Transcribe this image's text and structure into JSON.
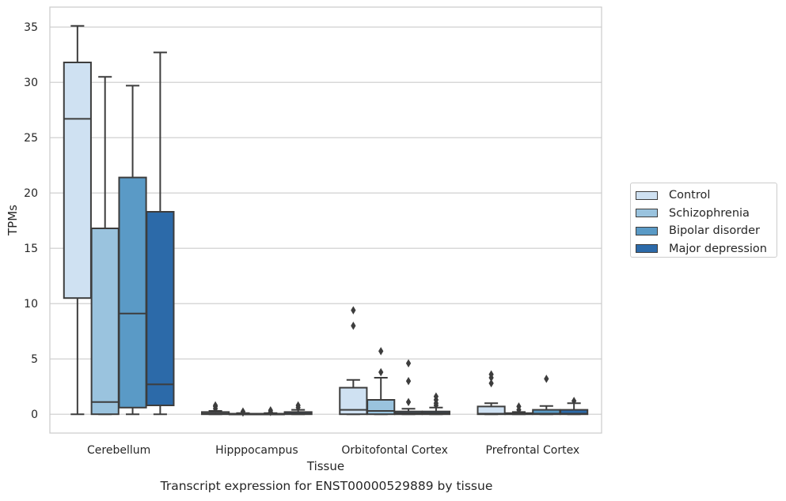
{
  "chart_data": {
    "type": "boxplot",
    "caption": "Transcript expression for ENST00000529889 by tissue",
    "xlabel": "Tissue",
    "ylabel": "TPMs",
    "ylim": [
      -1.7,
      36.8
    ],
    "yticks": [
      0,
      5,
      10,
      15,
      20,
      25,
      30,
      35
    ],
    "grid": true,
    "legend_position": "right",
    "categories": [
      "Cerebellum",
      "Hipppocampus",
      "Orbitofontal Cortex",
      "Prefrontal Cortex"
    ],
    "series": [
      {
        "name": "Control",
        "color": "#cfe1f2",
        "boxes": [
          {
            "q1": 10.5,
            "median": 26.7,
            "q3": 31.8,
            "whisker_low": 0,
            "whisker_high": 35.1,
            "outliers": []
          },
          {
            "q1": 0,
            "median": 0.05,
            "q3": 0.2,
            "whisker_low": 0,
            "whisker_high": 0.3,
            "outliers": [
              0.5,
              0.7,
              0.8
            ]
          },
          {
            "q1": 0,
            "median": 0.4,
            "q3": 2.4,
            "whisker_low": 0,
            "whisker_high": 3.1,
            "outliers": [
              8.0,
              9.4
            ]
          },
          {
            "q1": 0,
            "median": 0.05,
            "q3": 0.7,
            "whisker_low": 0,
            "whisker_high": 1.0,
            "outliers": [
              2.8,
              3.3,
              3.6
            ]
          }
        ]
      },
      {
        "name": "Schizophrenia",
        "color": "#9ac3de",
        "boxes": [
          {
            "q1": 0,
            "median": 1.1,
            "q3": 16.8,
            "whisker_low": 0,
            "whisker_high": 30.5,
            "outliers": []
          },
          {
            "q1": 0,
            "median": 0.02,
            "q3": 0.05,
            "whisker_low": 0,
            "whisker_high": 0.1,
            "outliers": [
              0.15,
              0.25
            ]
          },
          {
            "q1": 0,
            "median": 0.3,
            "q3": 1.3,
            "whisker_low": 0,
            "whisker_high": 3.3,
            "outliers": [
              3.8,
              5.7
            ]
          },
          {
            "q1": 0,
            "median": 0.02,
            "q3": 0.1,
            "whisker_low": 0,
            "whisker_high": 0.2,
            "outliers": [
              0.4,
              0.7
            ]
          }
        ]
      },
      {
        "name": "Bipolar disorder",
        "color": "#5a9ac6",
        "boxes": [
          {
            "q1": 0.6,
            "median": 9.1,
            "q3": 21.4,
            "whisker_low": 0,
            "whisker_high": 29.7,
            "outliers": []
          },
          {
            "q1": 0,
            "median": 0.02,
            "q3": 0.05,
            "whisker_low": 0,
            "whisker_high": 0.1,
            "outliers": [
              0.2,
              0.35
            ]
          },
          {
            "q1": 0,
            "median": 0.1,
            "q3": 0.25,
            "whisker_low": 0,
            "whisker_high": 0.5,
            "outliers": [
              1.1,
              3.0,
              4.6
            ]
          },
          {
            "q1": 0,
            "median": 0.05,
            "q3": 0.4,
            "whisker_low": 0,
            "whisker_high": 0.75,
            "outliers": [
              3.2
            ]
          }
        ]
      },
      {
        "name": "Major depression",
        "color": "#2c6aa9",
        "boxes": [
          {
            "q1": 0.8,
            "median": 2.7,
            "q3": 18.3,
            "whisker_low": 0,
            "whisker_high": 32.7,
            "outliers": []
          },
          {
            "q1": 0,
            "median": 0.05,
            "q3": 0.2,
            "whisker_low": 0,
            "whisker_high": 0.4,
            "outliers": [
              0.6,
              0.8
            ]
          },
          {
            "q1": 0,
            "median": 0.1,
            "q3": 0.25,
            "whisker_low": 0,
            "whisker_high": 0.6,
            "outliers": [
              0.8,
              1.0,
              1.3,
              1.6
            ]
          },
          {
            "q1": 0,
            "median": 0.05,
            "q3": 0.4,
            "whisker_low": 0,
            "whisker_high": 1.0,
            "outliers": [
              1.2
            ]
          }
        ]
      }
    ]
  }
}
